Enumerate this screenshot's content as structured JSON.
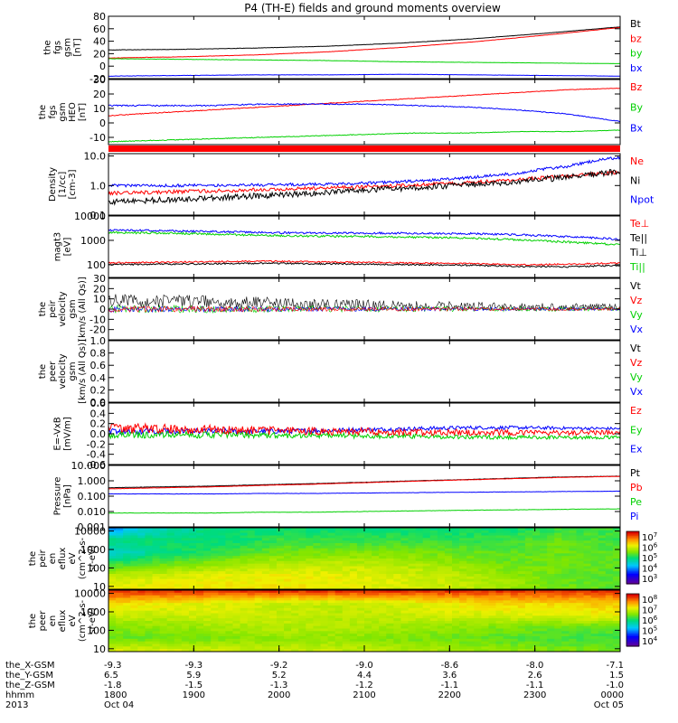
{
  "title": "P4 (TH-E) fields and ground moments overview",
  "time_axis": {
    "row_labels": [
      "the_X-GSM",
      "the_Y-GSM",
      "the_Z-GSM",
      "hhmm",
      "2013"
    ],
    "ticks": [
      {
        "values": [
          "-9.3",
          "6.5",
          "-1.8",
          "1800",
          "Oct 04"
        ]
      },
      {
        "values": [
          "-9.3",
          "5.9",
          "-1.5",
          "1900",
          ""
        ]
      },
      {
        "values": [
          "-9.2",
          "5.2",
          "-1.3",
          "2000",
          ""
        ]
      },
      {
        "values": [
          "-9.0",
          "4.4",
          "-1.2",
          "2100",
          ""
        ]
      },
      {
        "values": [
          "-8.6",
          "3.6",
          "-1.1",
          "2200",
          ""
        ]
      },
      {
        "values": [
          "-8.0",
          "2.6",
          "-1.1",
          "2300",
          ""
        ]
      },
      {
        "values": [
          "-7.1",
          "1.5",
          "-1.0",
          "0000",
          "Oct 05"
        ]
      }
    ]
  },
  "colors": {
    "black": "#000000",
    "red": "#ff0000",
    "green": "#00d000",
    "blue": "#0000ff",
    "panel_bg": "#ffffff"
  },
  "chart_data": [
    {
      "type": "line",
      "ylabel": [
        "the",
        "fgs",
        "gsm",
        "[nT]"
      ],
      "ylim": [
        -20,
        80
      ],
      "ticks": [
        {
          "v": -20,
          "label": "-20"
        },
        {
          "v": 0,
          "label": "0"
        },
        {
          "v": 20,
          "label": "20"
        },
        {
          "v": 40,
          "label": "40"
        },
        {
          "v": 60,
          "label": "60"
        },
        {
          "v": 80,
          "label": "80"
        }
      ],
      "legend": [
        "Bt",
        "bz",
        "by",
        "bx"
      ],
      "series": [
        {
          "name": "Bt",
          "color": "black",
          "values": [
            26,
            27,
            29,
            32,
            37,
            44,
            53,
            63
          ],
          "noise": 0.3
        },
        {
          "name": "bz",
          "color": "red",
          "values": [
            13,
            15,
            18,
            23,
            30,
            39,
            50,
            62
          ],
          "noise": 0.3
        },
        {
          "name": "by",
          "color": "green",
          "values": [
            12,
            11,
            10,
            9,
            7,
            6,
            5,
            4
          ],
          "noise": 0.3
        },
        {
          "name": "bx",
          "color": "blue",
          "values": [
            -16,
            -15,
            -14,
            -14,
            -13,
            -14,
            -15,
            -16
          ],
          "noise": 0.3
        }
      ]
    },
    {
      "type": "line",
      "ylabel": [
        "the",
        "fgs",
        "gsm",
        "HEO",
        "[nT]"
      ],
      "ylim": [
        -15,
        30
      ],
      "ticks": [
        {
          "v": -10,
          "label": "-10"
        },
        {
          "v": 0,
          "label": "0"
        },
        {
          "v": 10,
          "label": "10"
        },
        {
          "v": 20,
          "label": "20"
        },
        {
          "v": 30,
          "label": "30"
        }
      ],
      "legend": [
        "Bz",
        "By",
        "Bx"
      ],
      "series": [
        {
          "name": "Bz",
          "color": "red",
          "values": [
            5,
            7,
            9,
            11,
            13,
            15,
            17,
            19,
            21,
            23,
            24
          ],
          "noise": 0.3
        },
        {
          "name": "By",
          "color": "green",
          "values": [
            -13,
            -12,
            -11,
            -10,
            -9,
            -8,
            -7,
            -7,
            -6,
            -6,
            -5
          ],
          "noise": 0.3
        },
        {
          "name": "Bx",
          "color": "blue",
          "values": [
            12,
            12,
            12,
            13,
            13,
            13,
            12,
            11,
            9,
            6,
            1
          ],
          "noise": 0.5
        }
      ]
    },
    {
      "type": "line",
      "ylabel": [
        "Density",
        "[1/cc]",
        "[cm-3]"
      ],
      "yscale": "log",
      "ylim": [
        0.1,
        12
      ],
      "ticks": [
        {
          "v": 0.1,
          "label": "0.1"
        },
        {
          "v": 1,
          "label": "1.0"
        },
        {
          "v": 10,
          "label": "10.0"
        }
      ],
      "legend": [
        "Ne",
        "Ni",
        "Npot"
      ],
      "series": [
        {
          "name": "Ne",
          "color": "red",
          "values": [
            0.55,
            0.6,
            0.65,
            0.72,
            0.8,
            0.9,
            1.05,
            1.25,
            1.6,
            2.1,
            2.8
          ],
          "noise": 0.06
        },
        {
          "name": "Ni",
          "color": "black",
          "values": [
            0.28,
            0.32,
            0.38,
            0.45,
            0.55,
            0.68,
            0.85,
            1.05,
            1.35,
            1.9,
            3.0
          ],
          "noise": 0.1
        },
        {
          "name": "Npot",
          "color": "blue",
          "values": [
            1.0,
            1.0,
            1.02,
            1.05,
            1.1,
            1.2,
            1.4,
            1.8,
            2.6,
            4.5,
            9.0
          ],
          "noise": 0.05
        }
      ]
    },
    {
      "type": "line",
      "ylabel": [
        "magt3",
        "[eV]"
      ],
      "yscale": "log",
      "ylim": [
        30,
        10000
      ],
      "ticks": [
        {
          "v": 100,
          "label": "100"
        },
        {
          "v": 1000,
          "label": "1000"
        },
        {
          "v": 10000,
          "label": "10000"
        }
      ],
      "legend": [
        "Te⊥",
        "Te||",
        "Ti⊥",
        "Ti||"
      ],
      "series": [
        {
          "name": "Ti⊥",
          "color": "blue",
          "values": [
            2600,
            2500,
            2300,
            2100,
            2000,
            2000,
            1950,
            1900,
            1700,
            1400,
            1100
          ],
          "noise": 0.04
        },
        {
          "name": "Ti||",
          "color": "green",
          "values": [
            2100,
            2000,
            1800,
            1600,
            1500,
            1450,
            1350,
            1250,
            1050,
            850,
            650
          ],
          "noise": 0.04
        },
        {
          "name": "Te⊥",
          "color": "red",
          "values": [
            120,
            125,
            135,
            140,
            130,
            125,
            118,
            112,
            100,
            105,
            118
          ],
          "noise": 0.03
        },
        {
          "name": "Te||",
          "color": "black",
          "values": [
            100,
            105,
            110,
            115,
            110,
            105,
            100,
            95,
            85,
            82,
            95
          ],
          "noise": 0.03
        }
      ]
    },
    {
      "type": "line",
      "ylabel": [
        "the",
        "peir",
        "velocity",
        "gsm",
        "[km/s (All Qs)]"
      ],
      "ylim": [
        -30,
        30
      ],
      "ticks": [
        {
          "v": -20,
          "label": "-20"
        },
        {
          "v": -10,
          "label": "-10"
        },
        {
          "v": 0,
          "label": "0"
        },
        {
          "v": 10,
          "label": "10"
        },
        {
          "v": 20,
          "label": "20"
        },
        {
          "v": 30,
          "label": "30"
        }
      ],
      "legend": [
        "Vt",
        "Vz",
        "Vy",
        "Vx"
      ],
      "series": [
        {
          "name": "Vt",
          "color": "black",
          "values": [
            8,
            8,
            7,
            6,
            5,
            4,
            3,
            3,
            2,
            2,
            2
          ],
          "noise": 7
        },
        {
          "name": "Vy",
          "color": "green",
          "values": [
            0,
            0,
            0,
            0,
            0,
            0,
            0,
            0,
            0,
            0,
            0
          ],
          "noise": 4
        },
        {
          "name": "Vx",
          "color": "blue",
          "values": [
            0,
            0,
            0,
            0,
            0,
            0,
            0,
            0,
            0,
            0,
            0
          ],
          "noise": 3
        },
        {
          "name": "Vz",
          "color": "red",
          "values": [
            0,
            0,
            0,
            0,
            0,
            0,
            0,
            0,
            0,
            0,
            0
          ],
          "noise": 3
        }
      ]
    },
    {
      "type": "line",
      "ylabel": [
        "the",
        "peer",
        "velocity",
        "gsm",
        "[km/s (All Qs)]"
      ],
      "ylim": [
        0,
        1
      ],
      "ticks": [
        {
          "v": 0,
          "label": "0.0"
        },
        {
          "v": 0.2,
          "label": "0.2"
        },
        {
          "v": 0.4,
          "label": "0.4"
        },
        {
          "v": 0.6,
          "label": "0.6"
        },
        {
          "v": 0.8,
          "label": "0.8"
        },
        {
          "v": 1,
          "label": "1.0"
        }
      ],
      "legend": [
        "Vt",
        "Vz",
        "Vy",
        "Vx"
      ],
      "series": []
    },
    {
      "type": "line",
      "ylabel": [
        "E=-VxB",
        "[mV/m]"
      ],
      "ylim": [
        -0.6,
        0.6
      ],
      "ticks": [
        {
          "v": -0.6,
          "label": "-0.6"
        },
        {
          "v": -0.4,
          "label": "-0.4"
        },
        {
          "v": -0.2,
          "label": "-0.2"
        },
        {
          "v": 0,
          "label": "0.0"
        },
        {
          "v": 0.2,
          "label": "0.2"
        },
        {
          "v": 0.4,
          "label": "0.4"
        },
        {
          "v": 0.6,
          "label": "0.6"
        }
      ],
      "legend": [
        "Ez",
        "Ey",
        "Ex"
      ],
      "series": [
        {
          "name": "Ex",
          "color": "blue",
          "values": [
            0.05,
            0.05,
            0.05,
            0.05,
            0.06,
            0.08,
            0.1,
            0.12,
            0.12,
            0.11,
            0.1
          ],
          "noise": 0.06
        },
        {
          "name": "Ey",
          "color": "green",
          "values": [
            -0.02,
            -0.02,
            -0.02,
            -0.03,
            -0.03,
            -0.04,
            -0.05,
            -0.06,
            -0.07,
            -0.07,
            -0.07
          ],
          "noise": 0.07
        },
        {
          "name": "Ez",
          "color": "red",
          "values": [
            0.1,
            0.1,
            0.08,
            0.06,
            0.05,
            0.04,
            0.03,
            0.03,
            0.02,
            0.02,
            0.02
          ],
          "noise": 0.1
        }
      ]
    },
    {
      "type": "line",
      "ylabel": [
        "Pressure",
        "[nPa]"
      ],
      "yscale": "log",
      "ylim": [
        0.001,
        10
      ],
      "ticks": [
        {
          "v": 0.001,
          "label": "0.001"
        },
        {
          "v": 0.01,
          "label": "0.010"
        },
        {
          "v": 0.1,
          "label": "0.100"
        },
        {
          "v": 1,
          "label": "1.000"
        },
        {
          "v": 10,
          "label": "10.000"
        }
      ],
      "legend": [
        "Pt",
        "Pb",
        "Pe",
        "Pi"
      ],
      "series": [
        {
          "name": "Pt",
          "color": "black",
          "values": [
            0.35,
            0.4,
            0.45,
            0.55,
            0.65,
            0.8,
            1.0,
            1.2,
            1.5,
            1.8,
            2.0
          ],
          "noise": 0.01
        },
        {
          "name": "Pb",
          "color": "red",
          "values": [
            0.3,
            0.35,
            0.4,
            0.5,
            0.6,
            0.75,
            0.95,
            1.15,
            1.4,
            1.7,
            1.95
          ],
          "noise": 0.01
        },
        {
          "name": "Pi",
          "color": "blue",
          "values": [
            0.14,
            0.14,
            0.14,
            0.15,
            0.15,
            0.16,
            0.17,
            0.18,
            0.19,
            0.2,
            0.21
          ],
          "noise": 0.01
        },
        {
          "name": "Pe",
          "color": "green",
          "values": [
            0.008,
            0.008,
            0.008,
            0.009,
            0.009,
            0.01,
            0.011,
            0.012,
            0.013,
            0.014,
            0.015
          ],
          "noise": 0.01
        }
      ]
    },
    {
      "type": "heatmap",
      "ylabel": [
        "the",
        "peir",
        "en",
        "eflux",
        "eV",
        "(cm^2-s-",
        "sr-eV)"
      ],
      "yscale": "log",
      "ylim": [
        7,
        15000
      ],
      "ticks": [
        {
          "v": 10,
          "label": "10"
        },
        {
          "v": 100,
          "label": "100"
        },
        {
          "v": 1000,
          "label": "1000"
        },
        {
          "v": 10000,
          "label": "10000"
        }
      ],
      "colorbar": {
        "min": 1000,
        "max": 10000000,
        "ticks": [
          "10^3",
          "10^4",
          "10^5",
          "10^6",
          "10^7"
        ]
      },
      "levels": [
        [
          0.3,
          0.45,
          0.5,
          0.5,
          0.5,
          0.5,
          0.5,
          0.5,
          0.55,
          0.55
        ],
        [
          0.5,
          0.5,
          0.5,
          0.55,
          0.55,
          0.55,
          0.55,
          0.55,
          0.6,
          0.55
        ],
        [
          0.4,
          0.5,
          0.55,
          0.6,
          0.62,
          0.62,
          0.6,
          0.58,
          0.6,
          0.58
        ],
        [
          0.55,
          0.6,
          0.65,
          0.68,
          0.7,
          0.68,
          0.65,
          0.6,
          0.6,
          0.58
        ],
        [
          0.7,
          0.72,
          0.74,
          0.75,
          0.74,
          0.72,
          0.7,
          0.65,
          0.6,
          0.58
        ],
        [
          0.74,
          0.75,
          0.76,
          0.76,
          0.75,
          0.73,
          0.7,
          0.66,
          0.6,
          0.58
        ]
      ]
    },
    {
      "type": "heatmap",
      "ylabel": [
        "the",
        "peer",
        "en",
        "eflux",
        "eV",
        "(cm^2-s-",
        "sr-eV)"
      ],
      "yscale": "log",
      "ylim": [
        7,
        15000
      ],
      "ticks": [
        {
          "v": 10,
          "label": "10"
        },
        {
          "v": 100,
          "label": "100"
        },
        {
          "v": 1000,
          "label": "1000"
        },
        {
          "v": 10000,
          "label": "10000"
        }
      ],
      "colorbar": {
        "min": 3000,
        "max": 30000000,
        "ticks": [
          "10^4",
          "10^5",
          "10^6",
          "10^7",
          "10^8"
        ]
      },
      "levels": [
        [
          0.95,
          0.95,
          0.95,
          0.95,
          0.95,
          0.95,
          0.95,
          0.95,
          0.95,
          0.95
        ],
        [
          0.78,
          0.75,
          0.72,
          0.7,
          0.7,
          0.72,
          0.75,
          0.78,
          0.78,
          0.8
        ],
        [
          0.7,
          0.7,
          0.72,
          0.7,
          0.68,
          0.7,
          0.72,
          0.72,
          0.74,
          0.75
        ],
        [
          0.62,
          0.64,
          0.66,
          0.68,
          0.68,
          0.66,
          0.64,
          0.62,
          0.6,
          0.6
        ],
        [
          0.6,
          0.6,
          0.62,
          0.64,
          0.64,
          0.62,
          0.6,
          0.58,
          0.56,
          0.55
        ],
        [
          0.72,
          0.72,
          0.7,
          0.7,
          0.7,
          0.68,
          0.66,
          0.64,
          0.62,
          0.6
        ]
      ]
    }
  ]
}
